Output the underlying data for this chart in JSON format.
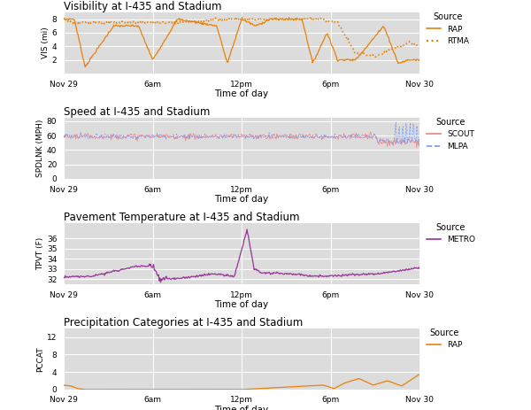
{
  "title1": "Visibility at I-435 and Stadium",
  "title2": "Speed at I-435 and Stadium",
  "title3": "Pavement Temperature at I-435 and Stadium",
  "title4": "Precipitation Categories at I-435 and Stadium",
  "ylabel1": "VIS (mi)",
  "ylabel2": "SPDLNK (MPH)",
  "ylabel3": "TPVT (F)",
  "ylabel4": "PCCAT",
  "xlabel": "Time of day",
  "bg_color": "#DCDCDC",
  "fig_color": "#FFFFFF",
  "orange_color": "#E8820A",
  "red_color": "#F08080",
  "blue_color": "#7799EE",
  "purple_color": "#993399",
  "xtick_labels": [
    "Nov 29",
    "6am",
    "12pm",
    "6pm",
    "Nov 30"
  ],
  "xtick_positions": [
    0.0,
    0.25,
    0.5,
    0.75,
    1.0
  ],
  "vis_ylim": [
    0,
    9
  ],
  "vis_yticks": [
    2,
    4,
    6,
    8
  ],
  "speed_ylim": [
    0,
    85
  ],
  "speed_yticks": [
    0,
    20,
    40,
    60,
    80
  ],
  "tpvt_ylim": [
    31.5,
    37.5
  ],
  "tpvt_yticks": [
    32,
    33,
    34,
    35,
    36
  ],
  "pccat_ylim": [
    0,
    14
  ],
  "pccat_yticks": [
    0,
    4,
    8,
    12
  ]
}
